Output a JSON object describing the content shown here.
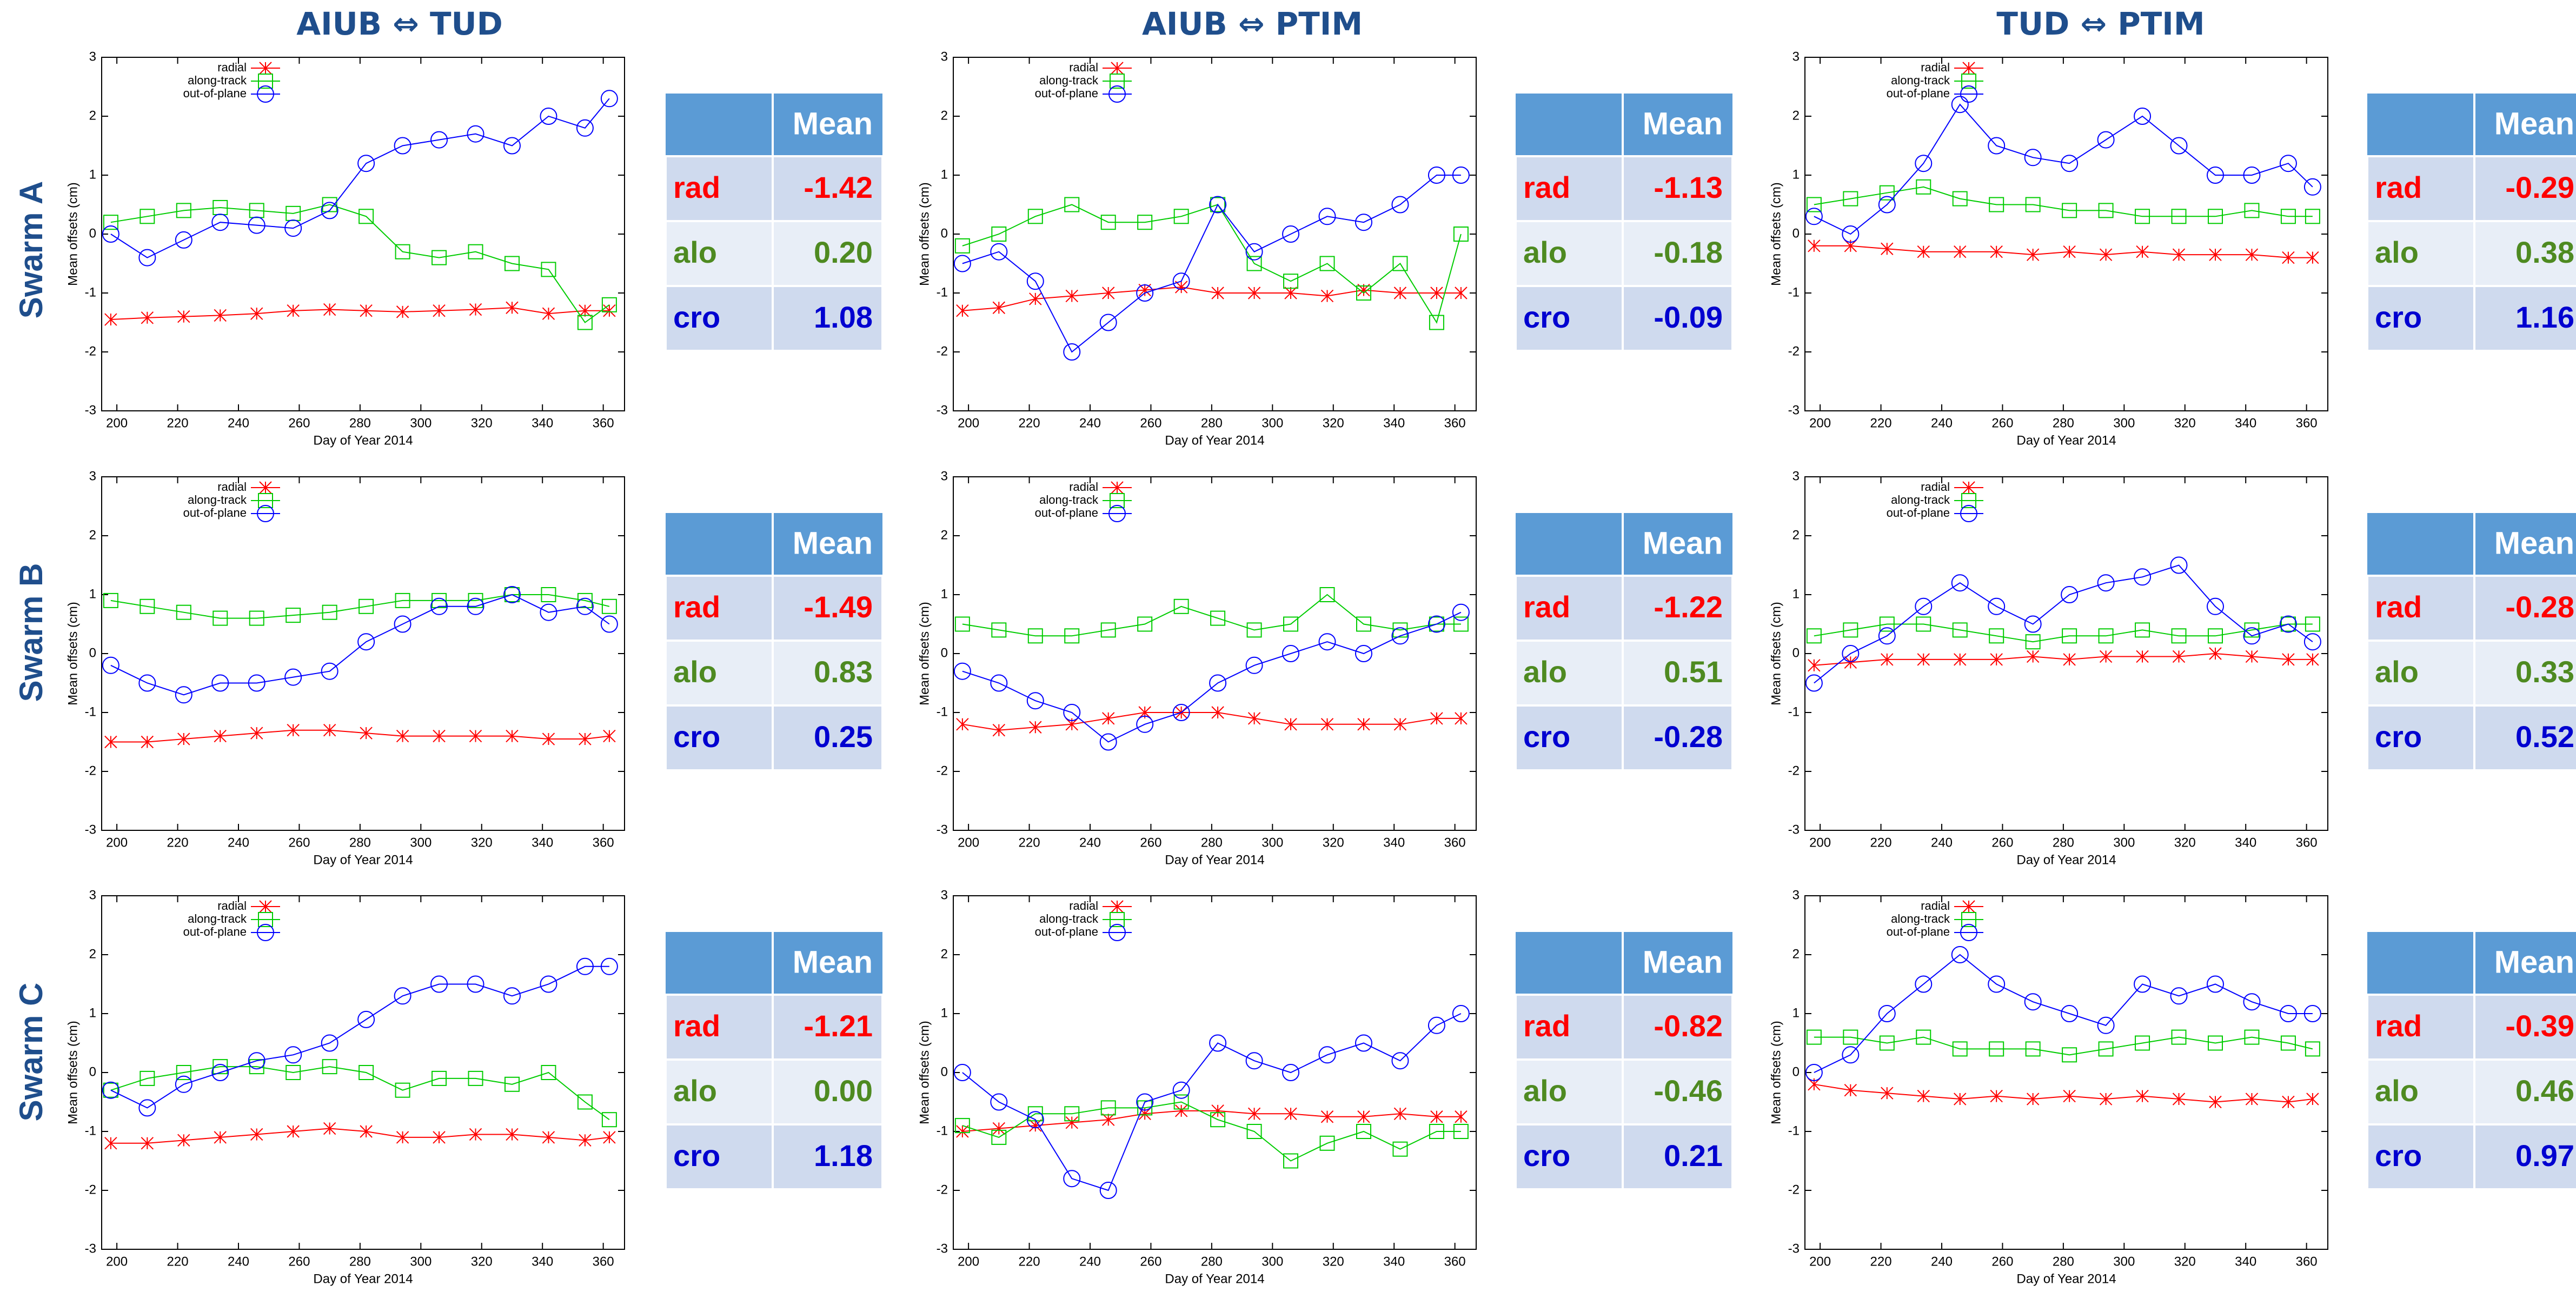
{
  "columns": [
    "AIUB ⇔ TUD",
    "AIUB ⇔ PTIM",
    "TUD ⇔ PTIM"
  ],
  "rows": [
    "Swarm A",
    "Swarm B",
    "Swarm C"
  ],
  "chart_data": [
    {
      "type": "line",
      "xlabel": "Day of Year 2014",
      "ylabel": "Mean offsets (cm)",
      "legend": "top left",
      "x": [
        198,
        210,
        222,
        234,
        246,
        258,
        270,
        282,
        294,
        306,
        318,
        330,
        342,
        354,
        362
      ],
      "xlim": [
        195,
        367
      ],
      "ylim": [
        -3,
        3
      ],
      "xticks": [
        200,
        220,
        240,
        260,
        280,
        300,
        320,
        340,
        360
      ],
      "yticks": [
        -3,
        -2,
        -1,
        0,
        1,
        2,
        3
      ],
      "series": [
        {
          "name": "radial",
          "color": "#ff0000",
          "marker": "x",
          "values": [
            -1.45,
            -1.42,
            -1.4,
            -1.38,
            -1.35,
            -1.3,
            -1.28,
            -1.3,
            -1.32,
            -1.3,
            -1.28,
            -1.25,
            -1.35,
            -1.3,
            -1.3
          ]
        },
        {
          "name": "along-track",
          "color": "#00cc00",
          "marker": "square",
          "values": [
            0.2,
            0.3,
            0.4,
            0.45,
            0.4,
            0.35,
            0.5,
            0.3,
            -0.3,
            -0.4,
            -0.3,
            -0.5,
            -0.6,
            -1.5,
            -1.2
          ]
        },
        {
          "name": "out-of-plane",
          "color": "#0000ff",
          "marker": "circle",
          "values": [
            0.0,
            -0.4,
            -0.1,
            0.2,
            0.15,
            0.1,
            0.4,
            1.2,
            1.5,
            1.6,
            1.7,
            1.5,
            2.0,
            1.8,
            2.3
          ]
        }
      ]
    },
    {
      "type": "line",
      "xlabel": "Day of Year 2014",
      "ylabel": "Mean offsets (cm)",
      "legend": "top left",
      "x": [
        198,
        210,
        222,
        234,
        246,
        258,
        270,
        282,
        294,
        306,
        318,
        330,
        342,
        354,
        362
      ],
      "xlim": [
        195,
        367
      ],
      "ylim": [
        -3,
        3
      ],
      "xticks": [
        200,
        220,
        240,
        260,
        280,
        300,
        320,
        340,
        360
      ],
      "yticks": [
        -3,
        -2,
        -1,
        0,
        1,
        2,
        3
      ],
      "series": [
        {
          "name": "radial",
          "color": "#ff0000",
          "marker": "x",
          "values": [
            -1.3,
            -1.25,
            -1.1,
            -1.05,
            -1.0,
            -0.95,
            -0.9,
            -1.0,
            -1.0,
            -1.0,
            -1.05,
            -0.95,
            -1.0,
            -1.0,
            -1.0
          ]
        },
        {
          "name": "along-track",
          "color": "#00cc00",
          "marker": "square",
          "values": [
            -0.2,
            0.0,
            0.3,
            0.5,
            0.2,
            0.2,
            0.3,
            0.5,
            -0.5,
            -0.8,
            -0.5,
            -1.0,
            -0.5,
            -1.5,
            0.0
          ]
        },
        {
          "name": "out-of-plane",
          "color": "#0000ff",
          "marker": "circle",
          "values": [
            -0.5,
            -0.3,
            -0.8,
            -2.0,
            -1.5,
            -1.0,
            -0.8,
            0.5,
            -0.3,
            0.0,
            0.3,
            0.2,
            0.5,
            1.0,
            1.0
          ]
        }
      ]
    },
    {
      "type": "line",
      "xlabel": "Day of Year 2014",
      "ylabel": "Mean offsets (cm)",
      "legend": "top left",
      "x": [
        198,
        210,
        222,
        234,
        246,
        258,
        270,
        282,
        294,
        306,
        318,
        330,
        342,
        354,
        362
      ],
      "xlim": [
        195,
        367
      ],
      "ylim": [
        -3,
        3
      ],
      "xticks": [
        200,
        220,
        240,
        260,
        280,
        300,
        320,
        340,
        360
      ],
      "yticks": [
        -3,
        -2,
        -1,
        0,
        1,
        2,
        3
      ],
      "series": [
        {
          "name": "radial",
          "color": "#ff0000",
          "marker": "x",
          "values": [
            -0.2,
            -0.2,
            -0.25,
            -0.3,
            -0.3,
            -0.3,
            -0.35,
            -0.3,
            -0.35,
            -0.3,
            -0.35,
            -0.35,
            -0.35,
            -0.4,
            -0.4
          ]
        },
        {
          "name": "along-track",
          "color": "#00cc00",
          "marker": "square",
          "values": [
            0.5,
            0.6,
            0.7,
            0.8,
            0.6,
            0.5,
            0.5,
            0.4,
            0.4,
            0.3,
            0.3,
            0.3,
            0.4,
            0.3,
            0.3
          ]
        },
        {
          "name": "out-of-plane",
          "color": "#0000ff",
          "marker": "circle",
          "values": [
            0.3,
            0.0,
            0.5,
            1.2,
            2.2,
            1.5,
            1.3,
            1.2,
            1.6,
            2.0,
            1.5,
            1.0,
            1.0,
            1.2,
            0.8
          ]
        }
      ]
    },
    {
      "type": "line",
      "xlabel": "Day of Year 2014",
      "ylabel": "Mean offsets (cm)",
      "legend": "top left",
      "x": [
        198,
        210,
        222,
        234,
        246,
        258,
        270,
        282,
        294,
        306,
        318,
        330,
        342,
        354,
        362
      ],
      "xlim": [
        195,
        367
      ],
      "ylim": [
        -3,
        3
      ],
      "xticks": [
        200,
        220,
        240,
        260,
        280,
        300,
        320,
        340,
        360
      ],
      "yticks": [
        -3,
        -2,
        -1,
        0,
        1,
        2,
        3
      ],
      "series": [
        {
          "name": "radial",
          "color": "#ff0000",
          "marker": "x",
          "values": [
            -1.5,
            -1.5,
            -1.45,
            -1.4,
            -1.35,
            -1.3,
            -1.3,
            -1.35,
            -1.4,
            -1.4,
            -1.4,
            -1.4,
            -1.45,
            -1.45,
            -1.4
          ]
        },
        {
          "name": "along-track",
          "color": "#00cc00",
          "marker": "square",
          "values": [
            0.9,
            0.8,
            0.7,
            0.6,
            0.6,
            0.65,
            0.7,
            0.8,
            0.9,
            0.9,
            0.9,
            1.0,
            1.0,
            0.9,
            0.8
          ]
        },
        {
          "name": "out-of-plane",
          "color": "#0000ff",
          "marker": "circle",
          "values": [
            -0.2,
            -0.5,
            -0.7,
            -0.5,
            -0.5,
            -0.4,
            -0.3,
            0.2,
            0.5,
            0.8,
            0.8,
            1.0,
            0.7,
            0.8,
            0.5
          ]
        }
      ]
    },
    {
      "type": "line",
      "xlabel": "Day of Year 2014",
      "ylabel": "Mean offsets (cm)",
      "legend": "top left",
      "x": [
        198,
        210,
        222,
        234,
        246,
        258,
        270,
        282,
        294,
        306,
        318,
        330,
        342,
        354,
        362
      ],
      "xlim": [
        195,
        367
      ],
      "ylim": [
        -3,
        3
      ],
      "xticks": [
        200,
        220,
        240,
        260,
        280,
        300,
        320,
        340,
        360
      ],
      "yticks": [
        -3,
        -2,
        -1,
        0,
        1,
        2,
        3
      ],
      "series": [
        {
          "name": "radial",
          "color": "#ff0000",
          "marker": "x",
          "values": [
            -1.2,
            -1.3,
            -1.25,
            -1.2,
            -1.1,
            -1.0,
            -1.0,
            -1.0,
            -1.1,
            -1.2,
            -1.2,
            -1.2,
            -1.2,
            -1.1,
            -1.1
          ]
        },
        {
          "name": "along-track",
          "color": "#00cc00",
          "marker": "square",
          "values": [
            0.5,
            0.4,
            0.3,
            0.3,
            0.4,
            0.5,
            0.8,
            0.6,
            0.4,
            0.5,
            1.0,
            0.5,
            0.4,
            0.5,
            0.5
          ]
        },
        {
          "name": "out-of-plane",
          "color": "#0000ff",
          "marker": "circle",
          "values": [
            -0.3,
            -0.5,
            -0.8,
            -1.0,
            -1.5,
            -1.2,
            -1.0,
            -0.5,
            -0.2,
            0.0,
            0.2,
            0.0,
            0.3,
            0.5,
            0.7
          ]
        }
      ]
    },
    {
      "type": "line",
      "xlabel": "Day of Year 2014",
      "ylabel": "Mean offsets (cm)",
      "legend": "top left",
      "x": [
        198,
        210,
        222,
        234,
        246,
        258,
        270,
        282,
        294,
        306,
        318,
        330,
        342,
        354,
        362
      ],
      "xlim": [
        195,
        367
      ],
      "ylim": [
        -3,
        3
      ],
      "xticks": [
        200,
        220,
        240,
        260,
        280,
        300,
        320,
        340,
        360
      ],
      "yticks": [
        -3,
        -2,
        -1,
        0,
        1,
        2,
        3
      ],
      "series": [
        {
          "name": "radial",
          "color": "#ff0000",
          "marker": "x",
          "values": [
            -0.2,
            -0.15,
            -0.1,
            -0.1,
            -0.1,
            -0.1,
            -0.05,
            -0.1,
            -0.05,
            -0.05,
            -0.05,
            0.0,
            -0.05,
            -0.1,
            -0.1
          ]
        },
        {
          "name": "along-track",
          "color": "#00cc00",
          "marker": "square",
          "values": [
            0.3,
            0.4,
            0.5,
            0.5,
            0.4,
            0.3,
            0.2,
            0.3,
            0.3,
            0.4,
            0.3,
            0.3,
            0.4,
            0.5,
            0.5
          ]
        },
        {
          "name": "out-of-plane",
          "color": "#0000ff",
          "marker": "circle",
          "values": [
            -0.5,
            0.0,
            0.3,
            0.8,
            1.2,
            0.8,
            0.5,
            1.0,
            1.2,
            1.3,
            1.5,
            0.8,
            0.3,
            0.5,
            0.2
          ]
        }
      ]
    },
    {
      "type": "line",
      "xlabel": "Day of Year 2014",
      "ylabel": "Mean offsets (cm)",
      "legend": "top left",
      "x": [
        198,
        210,
        222,
        234,
        246,
        258,
        270,
        282,
        294,
        306,
        318,
        330,
        342,
        354,
        362
      ],
      "xlim": [
        195,
        367
      ],
      "ylim": [
        -3,
        3
      ],
      "xticks": [
        200,
        220,
        240,
        260,
        280,
        300,
        320,
        340,
        360
      ],
      "yticks": [
        -3,
        -2,
        -1,
        0,
        1,
        2,
        3
      ],
      "series": [
        {
          "name": "radial",
          "color": "#ff0000",
          "marker": "x",
          "values": [
            -1.2,
            -1.2,
            -1.15,
            -1.1,
            -1.05,
            -1.0,
            -0.95,
            -1.0,
            -1.1,
            -1.1,
            -1.05,
            -1.05,
            -1.1,
            -1.15,
            -1.1
          ]
        },
        {
          "name": "along-track",
          "color": "#00cc00",
          "marker": "square",
          "values": [
            -0.3,
            -0.1,
            0.0,
            0.1,
            0.1,
            0.0,
            0.1,
            0.0,
            -0.3,
            -0.1,
            -0.1,
            -0.2,
            0.0,
            -0.5,
            -0.8
          ]
        },
        {
          "name": "out-of-plane",
          "color": "#0000ff",
          "marker": "circle",
          "values": [
            -0.3,
            -0.6,
            -0.2,
            0.0,
            0.2,
            0.3,
            0.5,
            0.9,
            1.3,
            1.5,
            1.5,
            1.3,
            1.5,
            1.8,
            1.8
          ]
        }
      ]
    },
    {
      "type": "line",
      "xlabel": "Day of Year 2014",
      "ylabel": "Mean offsets (cm)",
      "legend": "top left",
      "x": [
        198,
        210,
        222,
        234,
        246,
        258,
        270,
        282,
        294,
        306,
        318,
        330,
        342,
        354,
        362
      ],
      "xlim": [
        195,
        367
      ],
      "ylim": [
        -3,
        3
      ],
      "xticks": [
        200,
        220,
        240,
        260,
        280,
        300,
        320,
        340,
        360
      ],
      "yticks": [
        -3,
        -2,
        -1,
        0,
        1,
        2,
        3
      ],
      "series": [
        {
          "name": "radial",
          "color": "#ff0000",
          "marker": "x",
          "values": [
            -1.0,
            -0.95,
            -0.9,
            -0.85,
            -0.8,
            -0.7,
            -0.65,
            -0.65,
            -0.7,
            -0.7,
            -0.75,
            -0.75,
            -0.7,
            -0.75,
            -0.75
          ]
        },
        {
          "name": "along-track",
          "color": "#00cc00",
          "marker": "square",
          "values": [
            -0.9,
            -1.1,
            -0.7,
            -0.7,
            -0.6,
            -0.6,
            -0.5,
            -0.8,
            -1.0,
            -1.5,
            -1.2,
            -1.0,
            -1.3,
            -1.0,
            -1.0
          ]
        },
        {
          "name": "out-of-plane",
          "color": "#0000ff",
          "marker": "circle",
          "values": [
            0.0,
            -0.5,
            -0.8,
            -1.8,
            -2.0,
            -0.5,
            -0.3,
            0.5,
            0.2,
            0.0,
            0.3,
            0.5,
            0.2,
            0.8,
            1.0
          ]
        }
      ]
    },
    {
      "type": "line",
      "xlabel": "Day of Year 2014",
      "ylabel": "Mean offsets (cm)",
      "legend": "top left",
      "x": [
        198,
        210,
        222,
        234,
        246,
        258,
        270,
        282,
        294,
        306,
        318,
        330,
        342,
        354,
        362
      ],
      "xlim": [
        195,
        367
      ],
      "ylim": [
        -3,
        3
      ],
      "xticks": [
        200,
        220,
        240,
        260,
        280,
        300,
        320,
        340,
        360
      ],
      "yticks": [
        -3,
        -2,
        -1,
        0,
        1,
        2,
        3
      ],
      "series": [
        {
          "name": "radial",
          "color": "#ff0000",
          "marker": "x",
          "values": [
            -0.2,
            -0.3,
            -0.35,
            -0.4,
            -0.45,
            -0.4,
            -0.45,
            -0.4,
            -0.45,
            -0.4,
            -0.45,
            -0.5,
            -0.45,
            -0.5,
            -0.45
          ]
        },
        {
          "name": "along-track",
          "color": "#00cc00",
          "marker": "square",
          "values": [
            0.6,
            0.6,
            0.5,
            0.6,
            0.4,
            0.4,
            0.4,
            0.3,
            0.4,
            0.5,
            0.6,
            0.5,
            0.6,
            0.5,
            0.4
          ]
        },
        {
          "name": "out-of-plane",
          "color": "#0000ff",
          "marker": "circle",
          "values": [
            0.0,
            0.3,
            1.0,
            1.5,
            2.0,
            1.5,
            1.2,
            1.0,
            0.8,
            1.5,
            1.3,
            1.5,
            1.2,
            1.0,
            1.0
          ]
        }
      ]
    }
  ],
  "tables": [
    {
      "header": "Mean",
      "rows": [
        [
          "rad",
          "-1.42"
        ],
        [
          "alo",
          "0.20"
        ],
        [
          "cro",
          "1.08"
        ]
      ]
    },
    {
      "header": "Mean",
      "rows": [
        [
          "rad",
          "-1.13"
        ],
        [
          "alo",
          "-0.18"
        ],
        [
          "cro",
          "-0.09"
        ]
      ]
    },
    {
      "header": "Mean",
      "rows": [
        [
          "rad",
          "-0.29"
        ],
        [
          "alo",
          "0.38"
        ],
        [
          "cro",
          "1.16"
        ]
      ]
    },
    {
      "header": "Mean",
      "rows": [
        [
          "rad",
          "-1.49"
        ],
        [
          "alo",
          "0.83"
        ],
        [
          "cro",
          "0.25"
        ]
      ]
    },
    {
      "header": "Mean",
      "rows": [
        [
          "rad",
          "-1.22"
        ],
        [
          "alo",
          "0.51"
        ],
        [
          "cro",
          "-0.28"
        ]
      ]
    },
    {
      "header": "Mean",
      "rows": [
        [
          "rad",
          "-0.28"
        ],
        [
          "alo",
          "0.33"
        ],
        [
          "cro",
          "0.52"
        ]
      ]
    },
    {
      "header": "Mean",
      "rows": [
        [
          "rad",
          "-1.21"
        ],
        [
          "alo",
          "0.00"
        ],
        [
          "cro",
          "1.18"
        ]
      ]
    },
    {
      "header": "Mean",
      "rows": [
        [
          "rad",
          "-0.82"
        ],
        [
          "alo",
          "-0.46"
        ],
        [
          "cro",
          "0.21"
        ]
      ]
    },
    {
      "header": "Mean",
      "rows": [
        [
          "rad",
          "-0.39"
        ],
        [
          "alo",
          "0.46"
        ],
        [
          "cro",
          "0.97"
        ]
      ]
    }
  ]
}
